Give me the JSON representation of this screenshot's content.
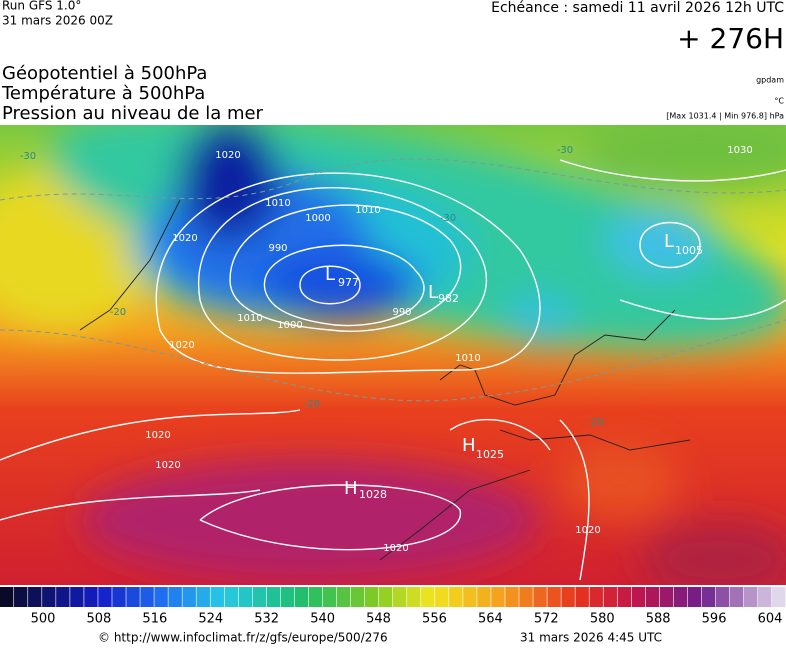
{
  "header": {
    "run": "Run GFS 1.0°",
    "run_date": "31 mars 2026 00Z",
    "echeance": "Echéance : samedi 11 avril 2026 12h UTC",
    "lead": "+ 276H",
    "fields": [
      "Géopotentiel à 500hPa",
      "Température à 500hPa",
      "Pression au niveau de la mer"
    ],
    "units": [
      "gpdam",
      "°C",
      "[Max 1031.4 | Min 976.8] hPa"
    ]
  },
  "map": {
    "centers": [
      {
        "letter": "L",
        "value": "977"
      },
      {
        "letter": "L",
        "value": "982"
      },
      {
        "letter": "L",
        "value": "1005"
      },
      {
        "letter": "H",
        "value": "1025"
      },
      {
        "letter": "H",
        "value": "1028"
      }
    ],
    "isobars": [
      "1020",
      "1010",
      "1000",
      "990",
      "1010",
      "1020",
      "1020",
      "1020",
      "1020",
      "1010",
      "1030",
      "1000",
      "990",
      "1010",
      "1020",
      "1020"
    ],
    "temperatures": [
      "-30",
      "-30",
      "-20",
      "-20",
      "-20",
      "-30"
    ]
  },
  "colorbar": {
    "labels": [
      500,
      508,
      516,
      524,
      532,
      540,
      548,
      556,
      564,
      572,
      580,
      588,
      596,
      604
    ]
  },
  "footer": {
    "source": "© http://www.infoclimat.fr/z/gfs/europe/500/276",
    "generated": "31 mars 2026  4:45 UTC"
  }
}
